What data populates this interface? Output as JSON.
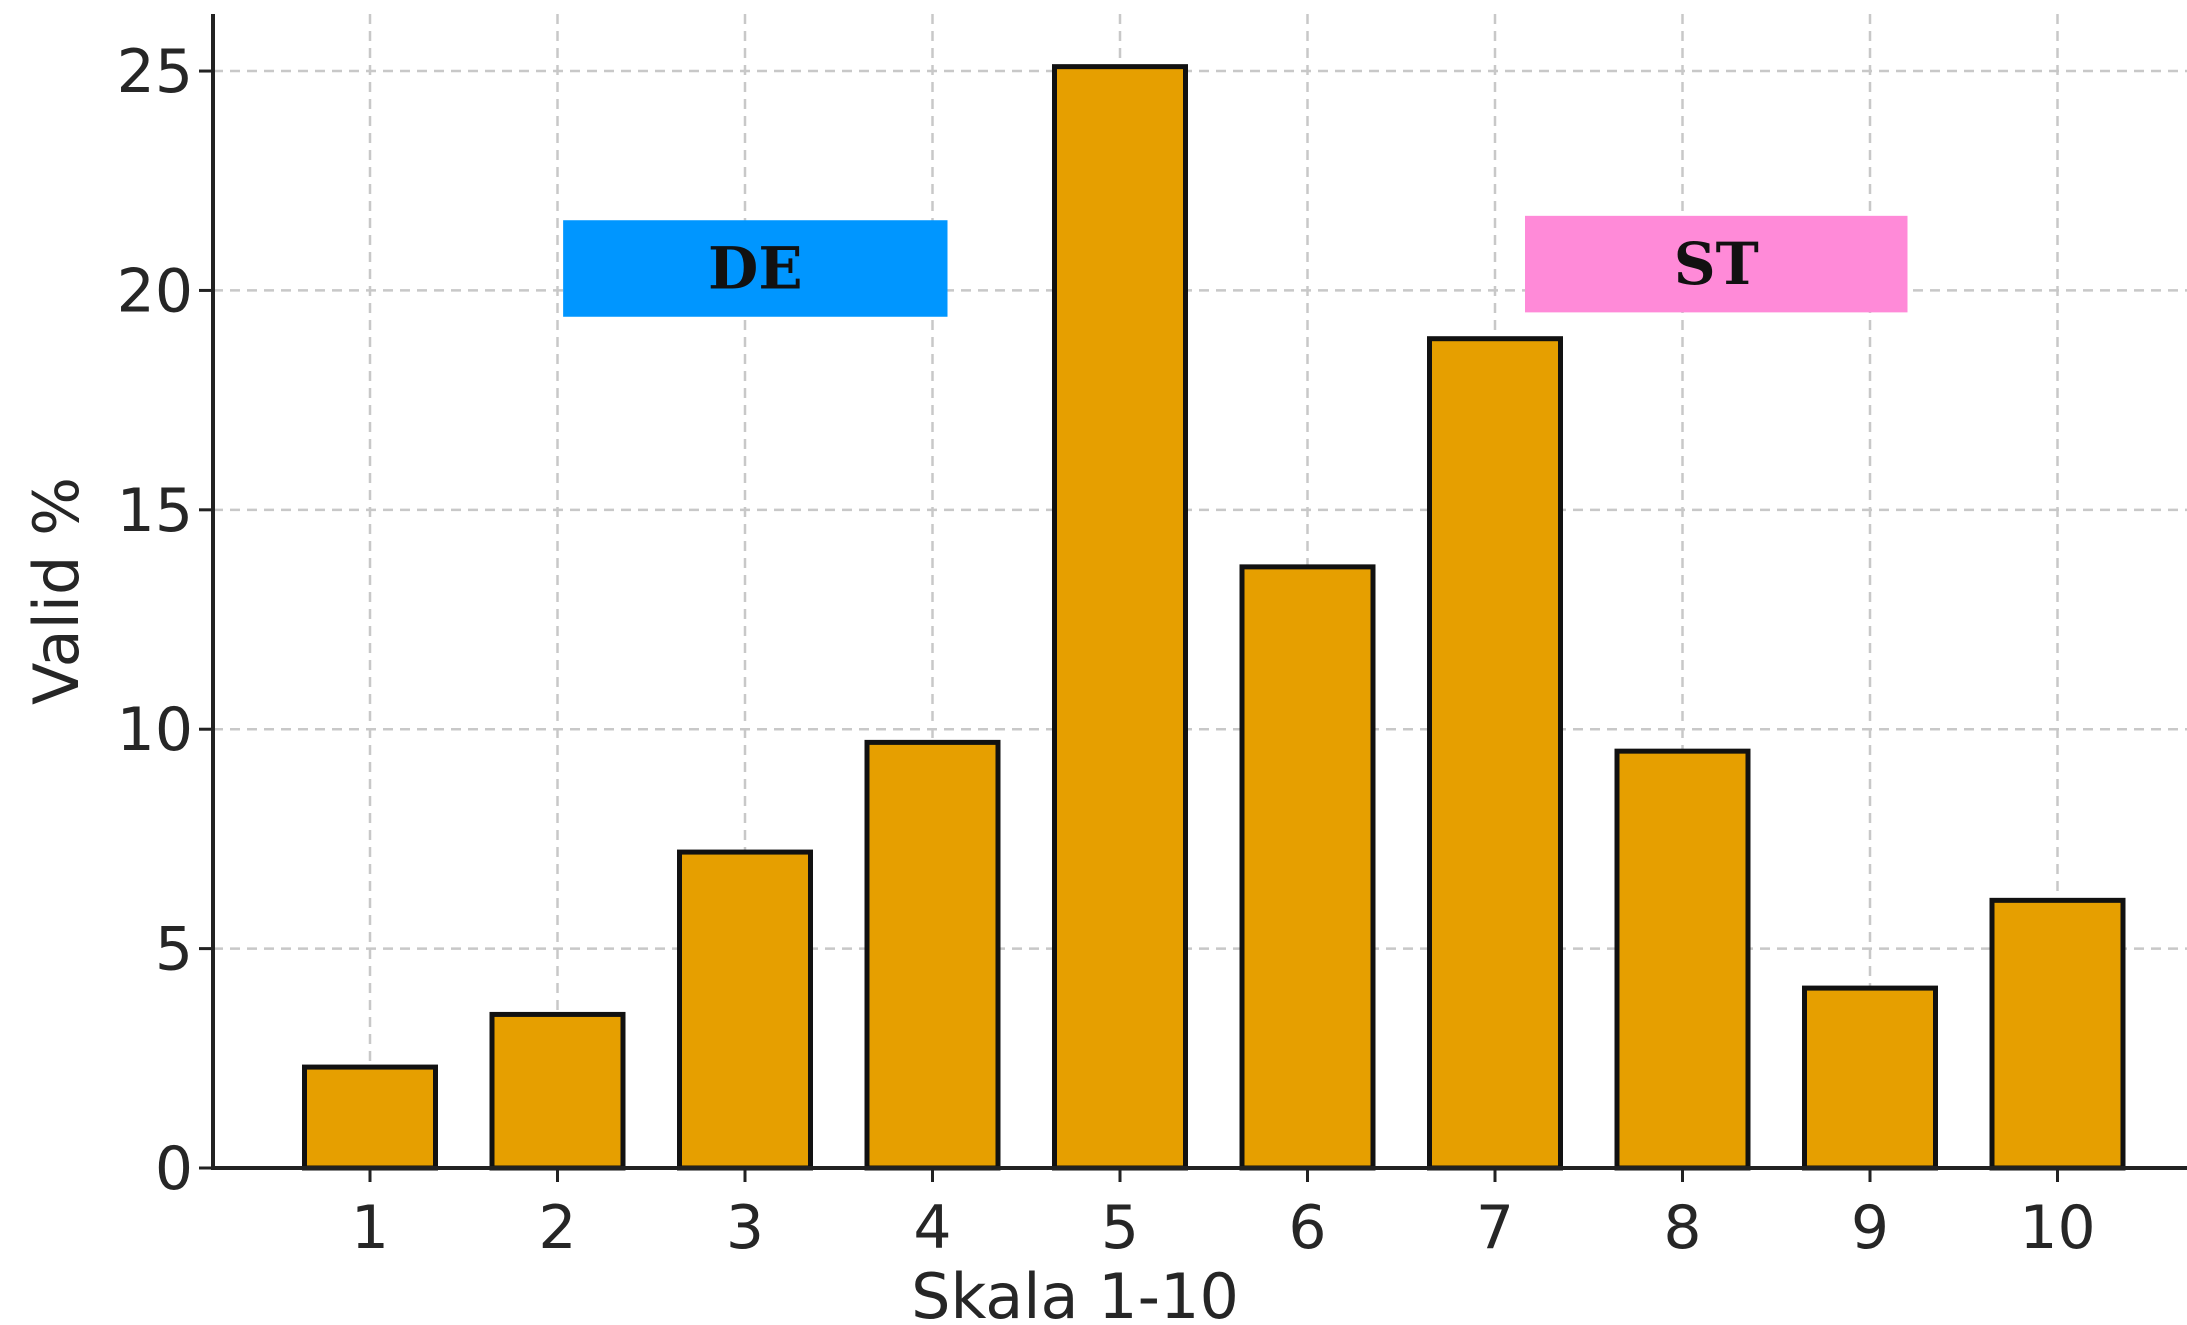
{
  "chart_data": {
    "type": "bar",
    "categories": [
      "1",
      "2",
      "3",
      "4",
      "5",
      "6",
      "7",
      "8",
      "9",
      "10"
    ],
    "values": [
      2.3,
      3.5,
      7.2,
      9.7,
      25.1,
      13.7,
      18.9,
      9.5,
      4.1,
      6.1
    ],
    "title": "",
    "xlabel": "Skala 1-10",
    "ylabel": "Valid %",
    "ylim": [
      0,
      26.3
    ],
    "yticks": [
      0,
      5,
      10,
      15,
      20,
      25
    ],
    "grid": true,
    "bar_color": "#E69F00",
    "bar_edge_color": "#111111",
    "annotations": [
      {
        "text": "DE",
        "background": "#0096FF",
        "x_start": 2.03,
        "x_end": 4.08,
        "y_low": 19.4,
        "y_high": 21.6
      },
      {
        "text": "ST",
        "background": "#FF8AD8",
        "x_start": 7.16,
        "x_end": 9.2,
        "y_low": 19.5,
        "y_high": 21.7
      }
    ]
  }
}
